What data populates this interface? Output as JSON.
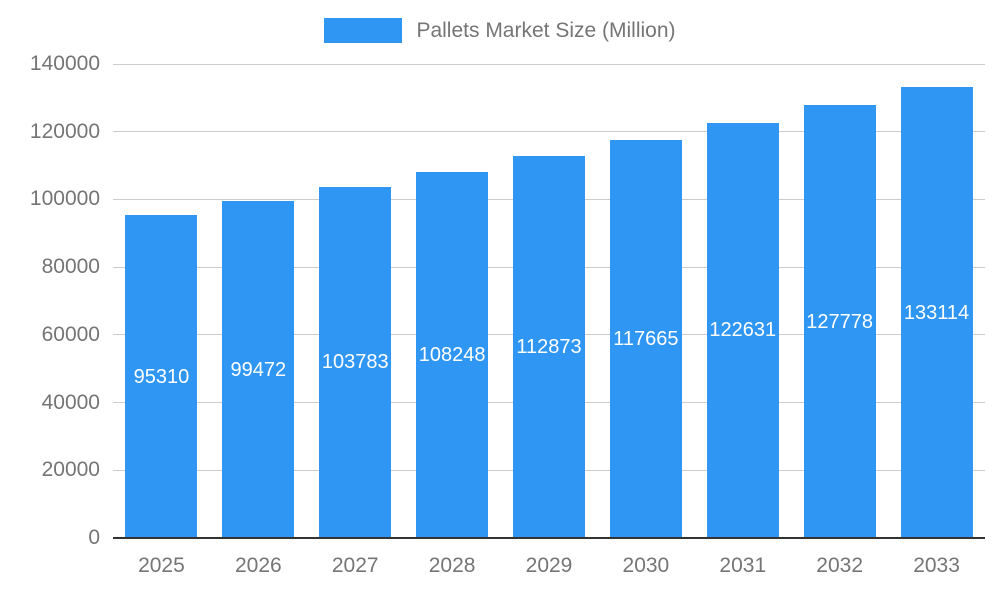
{
  "chart_data": {
    "type": "bar",
    "title": "Pallets Market Size (Million)",
    "categories": [
      "2025",
      "2026",
      "2027",
      "2028",
      "2029",
      "2030",
      "2031",
      "2032",
      "2033"
    ],
    "values": [
      95310,
      99472,
      103783,
      108248,
      112873,
      117665,
      122631,
      127778,
      133114
    ],
    "xlabel": "",
    "ylabel": "",
    "ylim": [
      0,
      140000
    ],
    "ytick_step": 20000,
    "ytick_labels": [
      "0",
      "20000",
      "40000",
      "60000",
      "80000",
      "100000",
      "120000",
      "140000"
    ],
    "grid": true,
    "legend_position": "top",
    "bar_color": "#2F96F3",
    "value_label_color": "#ffffff",
    "axis_text_color": "#757575",
    "grid_color": "#cccccc",
    "axis_line_color": "#333333",
    "background_color": "#ffffff"
  }
}
